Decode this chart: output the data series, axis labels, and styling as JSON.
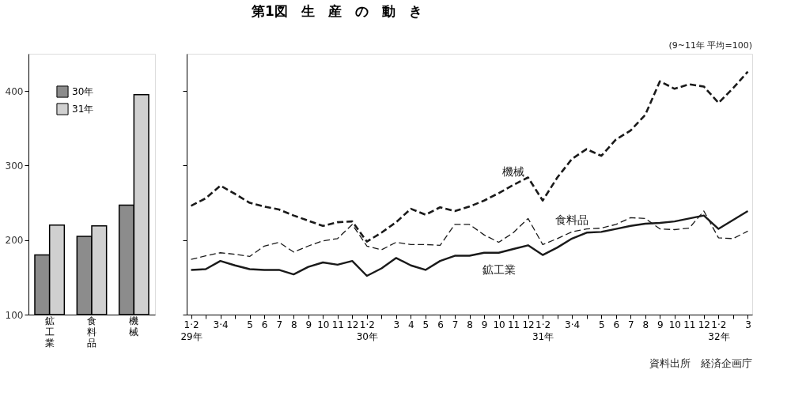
{
  "chart_data": [
    {
      "type": "bar",
      "categories": [
        "鉱工業",
        "食料品",
        "機械"
      ],
      "series": [
        {
          "name": "30年",
          "color": "#8c8c8c",
          "values": [
            180,
            205,
            247
          ]
        },
        {
          "name": "31年",
          "color": "#d0d0d0",
          "values": [
            220,
            219,
            395
          ]
        }
      ],
      "ylim": [
        100,
        450
      ],
      "yticks": [
        100,
        200,
        300,
        400
      ],
      "grid": false,
      "legend": "top"
    },
    {
      "type": "line",
      "categories": [
        "1·2\n29年",
        null,
        "3·4",
        null,
        "5",
        "6",
        "7",
        "8",
        "9",
        "10",
        "11",
        "12",
        "1·2\n30年",
        null,
        "3",
        "4",
        "5",
        "6",
        "7",
        "8",
        "9",
        "10",
        "11",
        "12",
        "1·2\n31年",
        null,
        "3·4",
        null,
        "5",
        "6",
        "7",
        "8",
        "9",
        "10",
        "11",
        "12",
        "1·2\n32年",
        null,
        "3"
      ],
      "series": [
        {
          "name": "機械",
          "color": "#1a1a1a",
          "line_style": "dashed",
          "values": [
            246,
            256,
            273,
            262,
            250,
            245,
            241,
            233,
            226,
            219,
            224,
            225,
            198,
            210,
            224,
            242,
            234,
            244,
            239,
            245,
            253,
            263,
            274,
            284,
            253,
            284,
            309,
            322,
            313,
            335,
            347,
            368,
            413,
            403,
            409,
            406,
            384,
            404,
            426
          ]
        },
        {
          "name": "食料品",
          "color": "#1a1a1a",
          "line_style": "dashed",
          "values": [
            174,
            179,
            183,
            181,
            178,
            192,
            197,
            184,
            192,
            199,
            202,
            221,
            192,
            187,
            197,
            194,
            194,
            193,
            221,
            221,
            207,
            197,
            210,
            229,
            194,
            202,
            211,
            215,
            216,
            221,
            230,
            229,
            215,
            214,
            216,
            239,
            203,
            202,
            212
          ]
        },
        {
          "name": "鉱工業",
          "color": "#1a1a1a",
          "line_style": "solid",
          "values": [
            160,
            161,
            172,
            166,
            161,
            160,
            160,
            154,
            164,
            170,
            167,
            172,
            152,
            162,
            176,
            166,
            160,
            172,
            179,
            179,
            183,
            183,
            188,
            193,
            180,
            190,
            202,
            210,
            211,
            215,
            219,
            222,
            223,
            225,
            229,
            233,
            215,
            227,
            239
          ]
        }
      ],
      "ylim": [
        100,
        450
      ],
      "yticks": [
        100,
        200,
        300,
        400
      ],
      "tick_labels": "x",
      "grid": false,
      "legend": false,
      "title": "第1図　生　産　の　動　き",
      "annotations": [
        "(9~11年 平均=100)",
        "資料出所　経済企画庁"
      ]
    }
  ]
}
